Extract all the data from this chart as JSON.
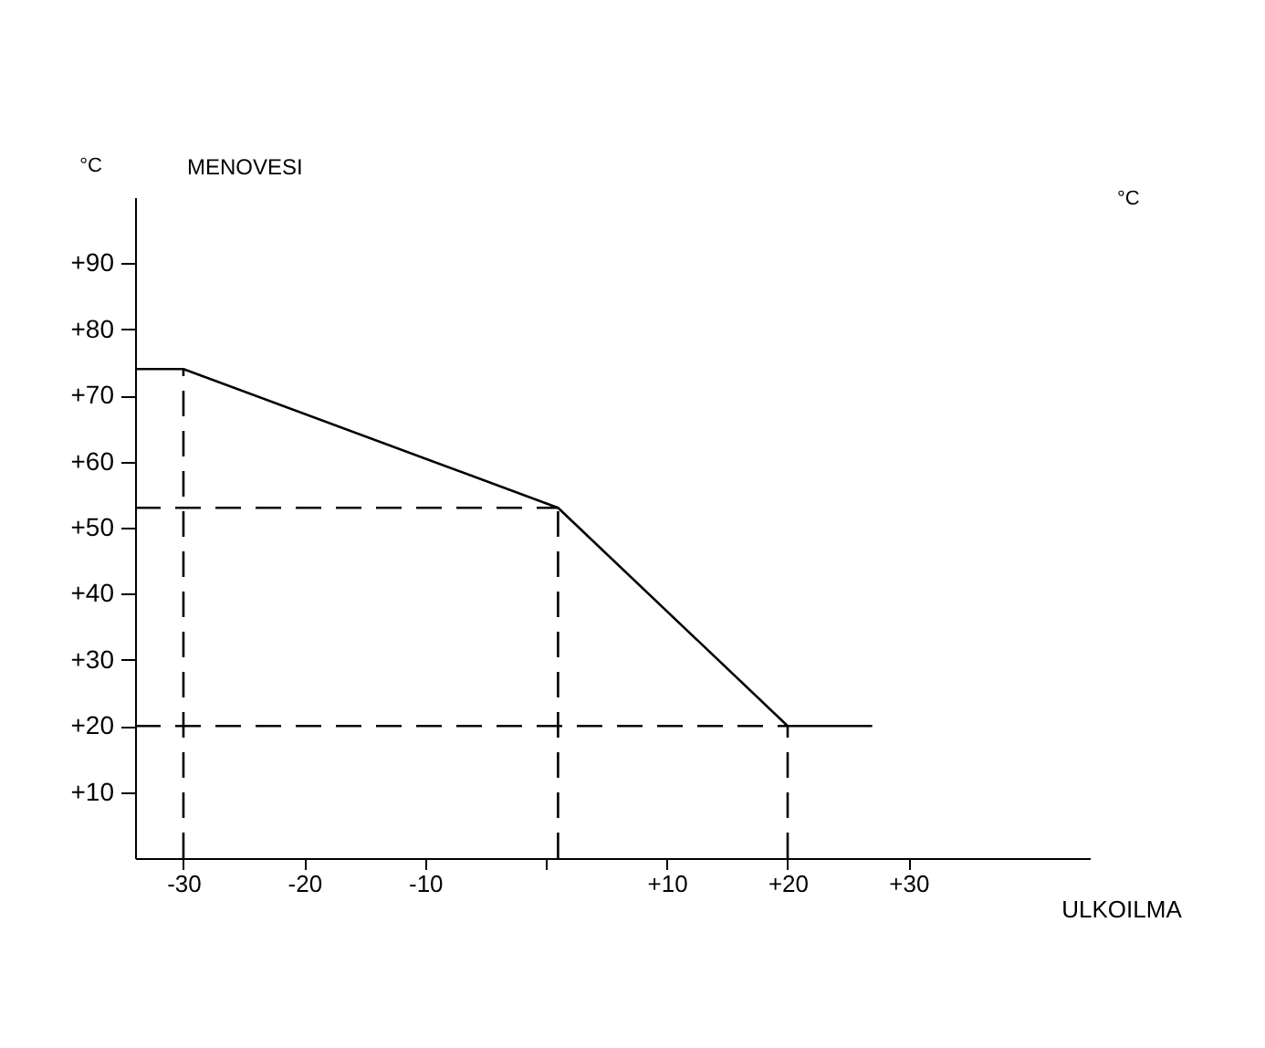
{
  "chart_data": {
    "type": "line",
    "xlabel": "ULKOILMA",
    "ylabel": "MENOVESI",
    "annotations": [
      "°C",
      "°C"
    ],
    "xlim": [
      -34,
      45
    ],
    "ylim": [
      0,
      100
    ],
    "xticks": [
      {
        "value": -30,
        "label": "-30"
      },
      {
        "value": -20,
        "label": "-20"
      },
      {
        "value": -10,
        "label": "-10"
      },
      {
        "value": 0,
        "label": null
      },
      {
        "value": 10,
        "label": "+10"
      },
      {
        "value": 20,
        "label": "+20"
      },
      {
        "value": 30,
        "label": "+30"
      }
    ],
    "yticks": [
      {
        "value": 10,
        "label": "+10"
      },
      {
        "value": 20,
        "label": "+20"
      },
      {
        "value": 30,
        "label": "+30"
      },
      {
        "value": 40,
        "label": "+40"
      },
      {
        "value": 50,
        "label": "+50"
      },
      {
        "value": 60,
        "label": "+60"
      },
      {
        "value": 70,
        "label": "+70"
      },
      {
        "value": 80,
        "label": "+80"
      },
      {
        "value": 90,
        "label": "+90"
      }
    ],
    "grid": false,
    "marker": "none",
    "series": [
      {
        "color": "#000000",
        "line_style": "solid",
        "x": [
          -34,
          -30,
          1,
          20,
          27
        ],
        "values": [
          74,
          74,
          53,
          20,
          20
        ]
      }
    ],
    "ref_lines": [
      {
        "axis": "x",
        "value": -30,
        "color": "#000000",
        "line_style": "dashed"
      },
      {
        "axis": "x",
        "value": 1,
        "color": "#000000",
        "line_style": "dashed"
      },
      {
        "axis": "x",
        "value": 20,
        "color": "#000000",
        "line_style": "dashed"
      },
      {
        "axis": "y",
        "value": 53,
        "color": "#000000",
        "line_style": "dashed"
      },
      {
        "axis": "y",
        "value": 20,
        "color": "#000000",
        "line_style": "dashed"
      }
    ]
  }
}
